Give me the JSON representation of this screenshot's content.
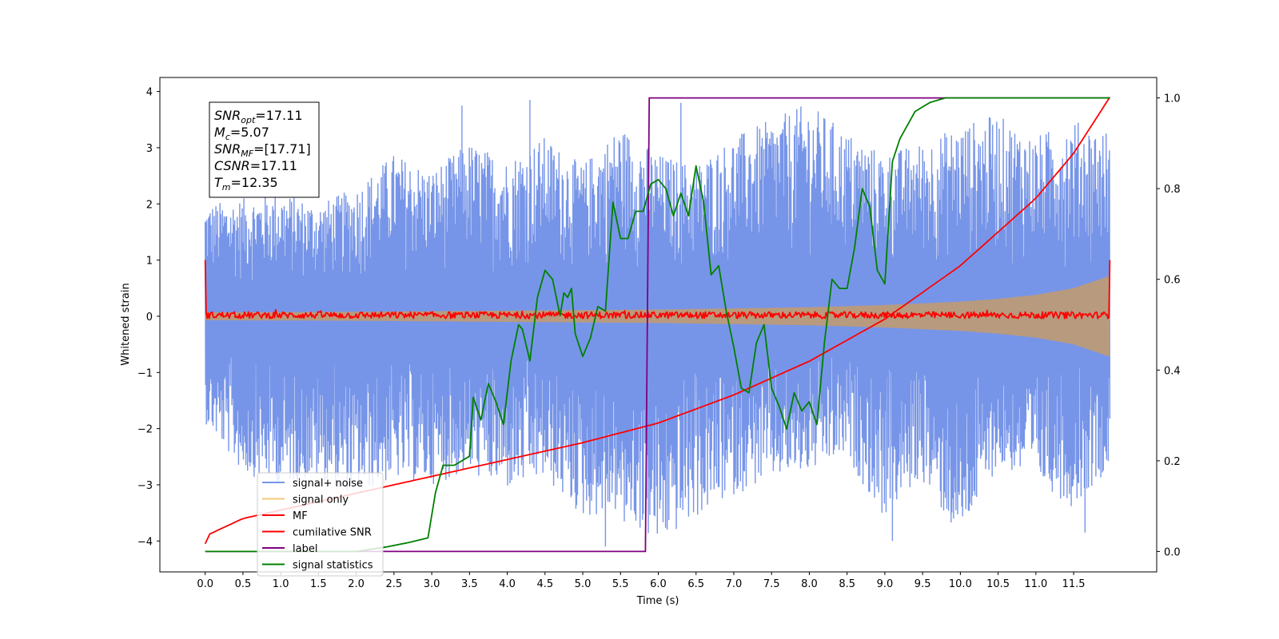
{
  "chart_data": {
    "type": "line",
    "xlabel": "Time (s)",
    "ylabel": "Whitened strain",
    "xlim": [
      -0.6,
      12.6
    ],
    "ylim": [
      -4.55,
      4.25
    ],
    "y2lim": [
      -0.045,
      1.045
    ],
    "x_ticks": [
      0.0,
      0.5,
      1.0,
      1.5,
      2.0,
      2.5,
      3.0,
      3.5,
      4.0,
      4.5,
      5.0,
      5.5,
      6.0,
      6.5,
      7.0,
      7.5,
      8.0,
      8.5,
      9.0,
      9.5,
      10.0,
      10.5,
      11.0,
      11.5
    ],
    "x_tick_labels": [
      "0.0",
      "0.5",
      "1.0",
      "1.5",
      "2.0",
      "2.5",
      "3.0",
      "3.5",
      "4.0",
      "4.5",
      "5.0",
      "5.5",
      "6.0",
      "6.5",
      "7.0",
      "7.5",
      "8.0",
      "8.5",
      "9.0",
      "9.5",
      "10.0",
      "10.5",
      "11.0",
      "11.5"
    ],
    "y_ticks": [
      4,
      3,
      2,
      1,
      0,
      -1,
      -2,
      -3,
      -4
    ],
    "y_tick_labels": [
      "4",
      "3",
      "2",
      "1",
      "0",
      "−1",
      "−2",
      "−3",
      "−4"
    ],
    "y2_ticks": [
      1.0,
      0.8,
      0.6,
      0.4,
      0.2,
      0.0
    ],
    "y2_tick_labels": [
      "1.0",
      "0.8",
      "0.6",
      "0.4",
      "0.2",
      "0.0"
    ],
    "colors": {
      "signal_noise": "#7795e8",
      "signal_only": "#f5c87a",
      "signal_only_overlap": "#bc9a78",
      "mf": "#ff0000",
      "csnr": "#ff0000",
      "label": "#800080",
      "stats": "#008000"
    },
    "series": [
      {
        "name": "signal+ noise",
        "axis": "left",
        "x_start": 0.0,
        "x_end": 11.98,
        "envelope_upper": [
          2.0,
          2.1,
          2.2,
          2.0,
          2.3,
          2.9,
          2.6,
          3.1,
          2.8,
          3.2,
          2.7,
          3.4,
          2.9,
          2.7,
          3.2,
          3.5,
          3.8,
          3.3,
          2.9,
          3.1,
          3.4,
          3.6,
          3.2,
          3.5,
          3.3
        ],
        "envelope_lower": [
          -1.9,
          -2.8,
          -3.0,
          -2.9,
          -3.2,
          -2.9,
          -3.0,
          -2.8,
          -3.1,
          -2.9,
          -3.6,
          -3.5,
          -4.1,
          -3.6,
          -3.2,
          -2.9,
          -2.8,
          -2.5,
          -3.6,
          -2.9,
          -4.0,
          -2.7,
          -2.9,
          -3.4,
          -2.7
        ],
        "extreme_spikes": [
          {
            "x": 5.3,
            "y": -4.1
          },
          {
            "x": 5.55,
            "y": -3.65
          },
          {
            "x": 9.1,
            "y": -4.0
          },
          {
            "x": 11.65,
            "y": -3.85
          },
          {
            "x": 4.3,
            "y": 3.85
          },
          {
            "x": 6.3,
            "y": 3.8
          },
          {
            "x": 3.4,
            "y": 3.75
          }
        ]
      },
      {
        "name": "signal only",
        "axis": "left",
        "amp_x": [
          0.0,
          2.0,
          4.0,
          6.0,
          8.0,
          9.0,
          10.0,
          10.5,
          11.0,
          11.5,
          11.98
        ],
        "amp_y": [
          0.07,
          0.08,
          0.1,
          0.12,
          0.16,
          0.2,
          0.26,
          0.31,
          0.38,
          0.5,
          0.72
        ]
      },
      {
        "name": "MF",
        "axis": "left",
        "baseline": 0.02,
        "noise_amp": 0.06,
        "edge_values": {
          "start": 1.0,
          "end": 1.0
        }
      },
      {
        "name": "cumilative SNR",
        "axis": "left",
        "x": [
          0.0,
          0.02,
          0.5,
          1.0,
          2.0,
          3.0,
          4.0,
          5.0,
          6.0,
          7.0,
          8.0,
          9.0,
          10.0,
          10.5,
          11.0,
          11.5,
          11.98
        ],
        "y": [
          -4.05,
          -3.9,
          -3.6,
          -3.45,
          -3.15,
          -2.85,
          -2.55,
          -2.25,
          -1.9,
          -1.4,
          -0.8,
          -0.05,
          0.9,
          1.5,
          2.1,
          2.9,
          3.9
        ]
      },
      {
        "name": "label",
        "axis": "right",
        "x": [
          0.0,
          5.83,
          5.88,
          11.98
        ],
        "y": [
          0.0,
          0.0,
          1.0,
          1.0
        ]
      },
      {
        "name": "signal statistics",
        "axis": "right",
        "x": [
          0.0,
          1.0,
          2.0,
          2.4,
          2.7,
          2.95,
          3.05,
          3.15,
          3.3,
          3.5,
          3.55,
          3.65,
          3.75,
          3.85,
          3.95,
          4.05,
          4.15,
          4.2,
          4.3,
          4.4,
          4.5,
          4.6,
          4.7,
          4.75,
          4.8,
          4.85,
          4.9,
          5.0,
          5.1,
          5.2,
          5.3,
          5.4,
          5.5,
          5.6,
          5.7,
          5.8,
          5.9,
          6.0,
          6.1,
          6.2,
          6.3,
          6.4,
          6.5,
          6.6,
          6.7,
          6.8,
          6.9,
          7.0,
          7.1,
          7.2,
          7.3,
          7.4,
          7.5,
          7.6,
          7.7,
          7.8,
          7.9,
          8.0,
          8.1,
          8.2,
          8.3,
          8.4,
          8.5,
          8.6,
          8.7,
          8.8,
          8.9,
          9.0,
          9.1,
          9.2,
          9.3,
          9.4,
          9.5,
          9.6,
          9.8,
          10.0,
          10.5,
          11.0,
          11.98
        ],
        "y": [
          0.0,
          0.0,
          0.0,
          0.01,
          0.02,
          0.03,
          0.13,
          0.19,
          0.19,
          0.21,
          0.34,
          0.29,
          0.37,
          0.33,
          0.28,
          0.42,
          0.5,
          0.49,
          0.42,
          0.56,
          0.62,
          0.6,
          0.52,
          0.57,
          0.56,
          0.58,
          0.48,
          0.43,
          0.47,
          0.54,
          0.53,
          0.77,
          0.69,
          0.69,
          0.75,
          0.75,
          0.81,
          0.82,
          0.8,
          0.74,
          0.79,
          0.74,
          0.85,
          0.77,
          0.61,
          0.63,
          0.53,
          0.45,
          0.36,
          0.35,
          0.46,
          0.5,
          0.36,
          0.32,
          0.27,
          0.35,
          0.31,
          0.33,
          0.28,
          0.46,
          0.6,
          0.58,
          0.58,
          0.67,
          0.8,
          0.76,
          0.62,
          0.59,
          0.86,
          0.91,
          0.94,
          0.97,
          0.98,
          0.99,
          1.0,
          1.0,
          1.0,
          1.0,
          1.0
        ]
      }
    ],
    "legend": {
      "placement": "lower-left",
      "entries": [
        {
          "label": "signal+ noise",
          "color": "#7795e8"
        },
        {
          "label": "signal only",
          "color": "#f5c87a"
        },
        {
          "label": "MF",
          "color": "#ff0000"
        },
        {
          "label": "cumilative SNR",
          "color": "#ff0000"
        },
        {
          "label": "label",
          "color": "#800080"
        },
        {
          "label": "signal statistics",
          "color": "#008000"
        }
      ]
    },
    "annotation": {
      "placement": "upper-left",
      "lines": [
        {
          "base": "SNR",
          "sub": "opt",
          "value": "=17.11"
        },
        {
          "base": "M",
          "sub": "c",
          "value": "=5.07"
        },
        {
          "base": "SNR",
          "sub": "MF",
          "value": "=[17.71]"
        },
        {
          "base": "CSNR",
          "sub": "",
          "value": "=17.11"
        },
        {
          "base": "T",
          "sub": "m",
          "value": "=12.35"
        }
      ]
    }
  }
}
